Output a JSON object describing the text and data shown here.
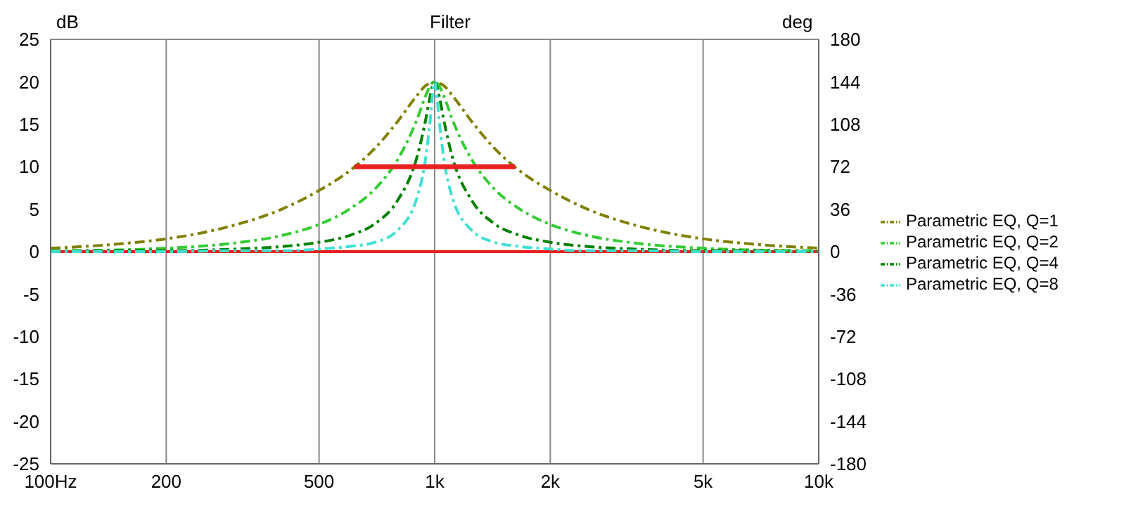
{
  "chart_data": {
    "type": "line",
    "title": "Filter",
    "ylabel": "dB",
    "y2label": "deg",
    "xlim": [
      100,
      10000
    ],
    "xticks": [
      {
        "value": 100,
        "label": "100Hz"
      },
      200,
      500,
      {
        "value": 1000,
        "label": "1k"
      },
      {
        "value": 2000,
        "label": "2k"
      },
      {
        "value": 5000,
        "label": "5k"
      },
      {
        "value": 10000,
        "label": "10k"
      }
    ],
    "ylim": [
      -25,
      25
    ],
    "yticks": [
      -25,
      -20,
      -15,
      -10,
      -5,
      0,
      5,
      10,
      15,
      20,
      25
    ],
    "y2lim": [
      -180,
      180
    ],
    "y2ticks": [
      -180,
      -144,
      -108,
      -72,
      -36,
      0,
      36,
      72,
      108,
      144,
      180
    ],
    "log": "x",
    "grid": true,
    "legend": "right",
    "line_style": "dashed",
    "marker": "none",
    "x": [
      100,
      150,
      200,
      300,
      400,
      500,
      600,
      700,
      800,
      900,
      950,
      970,
      1000,
      1031,
      1053,
      1111,
      1250,
      1429,
      1667,
      2000,
      2500,
      3333,
      5000,
      6667,
      10000
    ],
    "series": [
      {
        "name": "Parametric EQ, Q=1",
        "color": "#808000",
        "values": [
          0.4,
          0.9,
          1.5,
          3.1,
          5.0,
          7.2,
          9.5,
          12.2,
          15.3,
          18.4,
          19.6,
          19.8,
          20,
          19.8,
          19.6,
          18.4,
          15.3,
          12.2,
          9.5,
          7.2,
          5.0,
          3.1,
          1.5,
          0.9,
          0.4
        ]
      },
      {
        "name": "Parametric EQ, Q=2",
        "color": "#33cc33",
        "values": [
          0.1,
          0.2,
          0.4,
          1.0,
          1.9,
          3.2,
          5.0,
          7.4,
          10.8,
          15.6,
          18.5,
          19.4,
          20,
          19.4,
          18.5,
          15.6,
          10.8,
          7.4,
          5.0,
          3.2,
          1.9,
          1.0,
          0.4,
          0.2,
          0.1
        ]
      },
      {
        "name": "Parametric EQ, Q=4",
        "color": "#008000",
        "values": [
          0.0,
          0.1,
          0.1,
          0.3,
          0.6,
          1.1,
          1.9,
          3.3,
          6.0,
          11.2,
          15.8,
          18.0,
          20,
          18.0,
          15.8,
          11.2,
          6.0,
          3.3,
          1.9,
          1.1,
          0.6,
          0.3,
          0.1,
          0.1,
          0.0
        ]
      },
      {
        "name": "Parametric EQ, Q=8",
        "color": "#40e0d0",
        "values": [
          0.0,
          0.0,
          0.0,
          0.1,
          0.1,
          0.3,
          0.6,
          1.1,
          2.5,
          6.4,
          11.4,
          14.8,
          20,
          14.8,
          11.4,
          6.4,
          2.5,
          1.1,
          0.6,
          0.3,
          0.1,
          0.1,
          0.0,
          0.0,
          0.0
        ]
      },
      {
        "color": "#e82020",
        "line_style": "solid",
        "x": [
          618,
          1618
        ],
        "values": [
          10,
          10
        ]
      }
    ],
    "ref_lines": [
      {
        "axis": "y",
        "value": 0,
        "color": "#e82020"
      }
    ]
  }
}
